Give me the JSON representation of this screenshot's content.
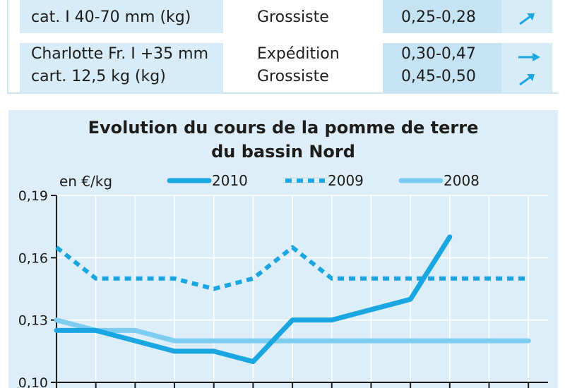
{
  "table": {
    "rows": [
      {
        "product_lines": [
          "cat. I 40-70 mm (kg)"
        ],
        "markets": [
          "Grossiste"
        ],
        "prices": [
          "0,25-0,28"
        ],
        "trends": [
          "up"
        ]
      },
      {
        "product_lines": [
          "Charlotte Fr. I +35 mm",
          "cart. 12,5 kg (kg)"
        ],
        "markets": [
          "Expédition",
          "Grossiste"
        ],
        "prices": [
          "0,30-0,47",
          "0,45-0,50"
        ],
        "trends": [
          "stable",
          "up"
        ]
      }
    ]
  },
  "chart_data": {
    "type": "line",
    "title": "Evolution du cours de la pomme de terre du bassin Nord",
    "title_lines": [
      "Evolution du cours de la pomme de terre",
      "du bassin Nord"
    ],
    "ylabel": "en €/kg",
    "ylim": [
      0.1,
      0.19
    ],
    "yticks": [
      "0,19",
      "0,16",
      "0,13",
      "0,10"
    ],
    "ytick_values": [
      0.19,
      0.16,
      0.13,
      0.1
    ],
    "x": [
      1,
      2,
      3,
      4,
      5,
      6,
      7,
      8,
      9,
      10,
      11,
      12,
      13
    ],
    "xlim": [
      1,
      13.5
    ],
    "grid": true,
    "legend_position": "top",
    "series": [
      {
        "name": "2010",
        "style": "solid",
        "color": "#1aa6e0",
        "values": [
          0.125,
          0.125,
          0.12,
          0.115,
          0.115,
          0.11,
          0.13,
          0.13,
          0.135,
          0.14,
          0.17,
          null,
          null
        ]
      },
      {
        "name": "2009",
        "style": "dashed",
        "color": "#1aa6e0",
        "values": [
          0.165,
          0.15,
          0.15,
          0.15,
          0.145,
          0.15,
          0.165,
          0.15,
          0.15,
          0.15,
          0.15,
          0.15,
          0.15
        ]
      },
      {
        "name": "2008",
        "style": "solid",
        "color": "#7ccdf0",
        "values": [
          0.13,
          0.125,
          0.125,
          0.12,
          0.12,
          0.12,
          0.12,
          0.12,
          0.12,
          0.12,
          0.12,
          0.12,
          0.12
        ]
      }
    ]
  },
  "colors": {
    "panel_bg": "#ddeef8",
    "cell_light": "#d7ecf7",
    "cell_dark": "#c5e3f3",
    "accent": "#1aa6e0"
  }
}
